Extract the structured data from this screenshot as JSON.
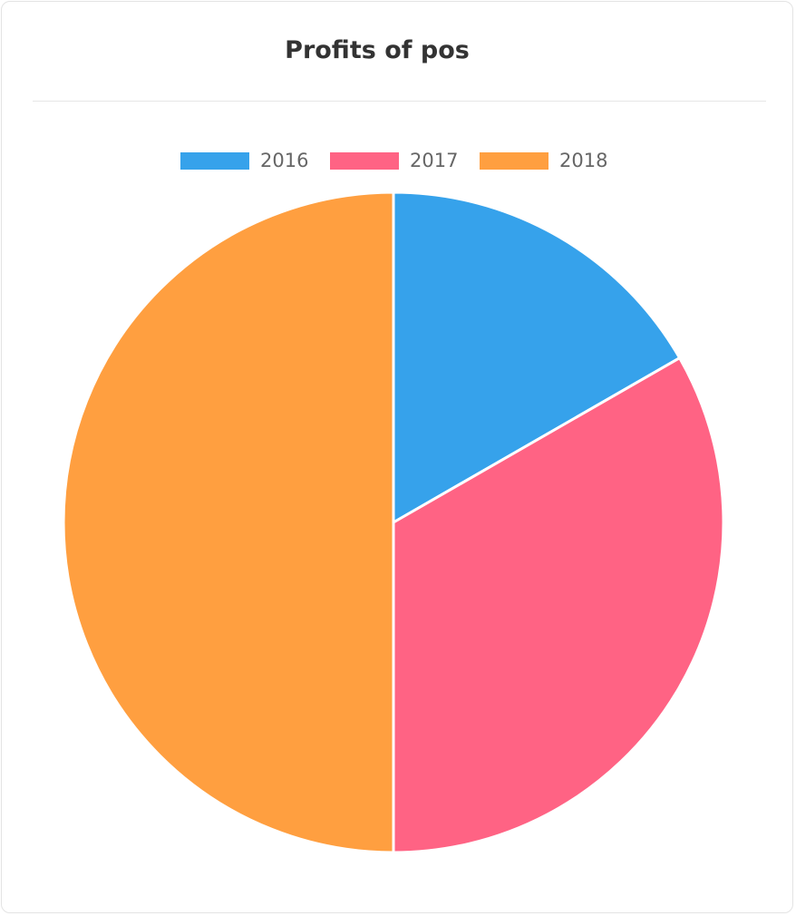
{
  "chart_data": {
    "type": "pie",
    "title": "Profits of pos",
    "categories": [
      "2016",
      "2017",
      "2018"
    ],
    "values": [
      16.7,
      33.3,
      50.0
    ],
    "colors": [
      "#36a2eb",
      "#ff6384",
      "#ff9f40"
    ],
    "legend_position": "top"
  }
}
